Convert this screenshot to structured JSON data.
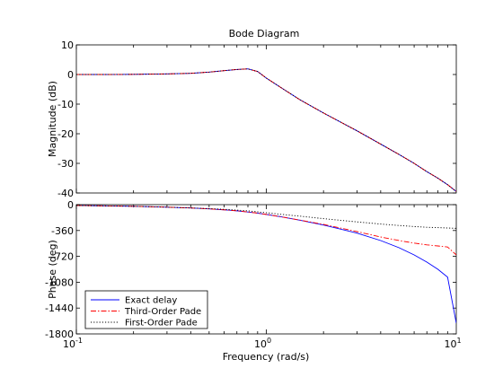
{
  "chart_data": {
    "type": "line",
    "title": "Bode Diagram",
    "xlabel": "Frequency  (rad/s)",
    "x_scale": "log",
    "xlim": [
      0.1,
      10
    ],
    "x_ticks": [
      {
        "value": 0.1,
        "base": "10",
        "exp": "-1"
      },
      {
        "value": 1,
        "base": "10",
        "exp": "0"
      },
      {
        "value": 10,
        "base": "10",
        "exp": "1"
      }
    ],
    "grid": false,
    "legend_position": "bottom-left",
    "panels": [
      {
        "name": "magnitude",
        "ylabel": "Magnitude (dB)",
        "ylim": [
          -40,
          10
        ],
        "y_ticks": [
          10,
          0,
          -10,
          -20,
          -30,
          -40
        ],
        "series": [
          {
            "name": "Exact delay",
            "color": "#0000ff",
            "x": [
              0.1,
              0.15,
              0.2,
              0.3,
              0.4,
              0.5,
              0.6,
              0.7,
              0.8,
              0.9,
              1.0,
              1.2,
              1.5,
              2,
              3,
              4,
              5,
              6,
              7,
              8,
              9,
              10
            ],
            "y": [
              0,
              0,
              0.05,
              0.2,
              0.4,
              0.8,
              1.3,
              1.7,
              1.9,
              1.0,
              -1.2,
              -4.5,
              -8.5,
              -13.0,
              -19.0,
              -23.5,
              -27.0,
              -30.0,
              -32.8,
              -35.0,
              -37.2,
              -39.5
            ]
          },
          {
            "name": "Third-Order Pade",
            "color": "#ff0000",
            "x": [
              0.1,
              0.15,
              0.2,
              0.3,
              0.4,
              0.5,
              0.6,
              0.7,
              0.8,
              0.9,
              1.0,
              1.2,
              1.5,
              2,
              3,
              4,
              5,
              6,
              7,
              8,
              9,
              10
            ],
            "y": [
              0,
              0,
              0.05,
              0.2,
              0.4,
              0.8,
              1.3,
              1.7,
              1.9,
              1.0,
              -1.2,
              -4.5,
              -8.5,
              -13.0,
              -19.0,
              -23.5,
              -27.0,
              -30.0,
              -32.8,
              -35.0,
              -37.2,
              -39.5
            ]
          },
          {
            "name": "First-Order Pade",
            "color": "#000000",
            "x": [
              0.1,
              0.15,
              0.2,
              0.3,
              0.4,
              0.5,
              0.6,
              0.7,
              0.8,
              0.9,
              1.0,
              1.2,
              1.5,
              2,
              3,
              4,
              5,
              6,
              7,
              8,
              9,
              10
            ],
            "y": [
              0,
              0,
              0.05,
              0.2,
              0.4,
              0.8,
              1.3,
              1.7,
              1.9,
              1.0,
              -1.2,
              -4.5,
              -8.5,
              -13.0,
              -19.0,
              -23.5,
              -27.0,
              -30.0,
              -32.8,
              -35.0,
              -37.2,
              -39.5
            ]
          }
        ]
      },
      {
        "name": "phase",
        "ylabel": "Phase (deg)",
        "ylim": [
          -1800,
          0
        ],
        "y_ticks": [
          0,
          -360,
          -720,
          -1080,
          -1440,
          -1800
        ],
        "series": [
          {
            "name": "Exact delay",
            "color": "#0000ff",
            "x": [
              0.1,
              0.15,
              0.2,
              0.3,
              0.4,
              0.5,
              0.6,
              0.7,
              0.8,
              0.9,
              1.0,
              1.2,
              1.5,
              2,
              3,
              4,
              5,
              6,
              7,
              8,
              9,
              10
            ],
            "y": [
              -12,
              -18,
              -23,
              -35,
              -46,
              -58,
              -72,
              -86,
              -102,
              -118,
              -136,
              -170,
              -217,
              -283,
              -396,
              -500,
              -600,
              -700,
              -800,
              -900,
              -1010,
              -1650
            ]
          },
          {
            "name": "Third-Order Pade",
            "color": "#ff0000",
            "x": [
              0.1,
              0.15,
              0.2,
              0.3,
              0.4,
              0.5,
              0.6,
              0.7,
              0.8,
              0.9,
              1.0,
              1.2,
              1.5,
              2,
              3,
              4,
              5,
              6,
              7,
              8,
              9,
              10
            ],
            "y": [
              -12,
              -18,
              -23,
              -35,
              -46,
              -58,
              -72,
              -86,
              -102,
              -118,
              -136,
              -170,
              -215,
              -275,
              -375,
              -450,
              -500,
              -535,
              -560,
              -575,
              -590,
              -700
            ]
          },
          {
            "name": "First-Order Pade",
            "color": "#000000",
            "x": [
              0.1,
              0.15,
              0.2,
              0.3,
              0.4,
              0.5,
              0.6,
              0.7,
              0.8,
              0.9,
              1.0,
              1.2,
              1.5,
              2,
              3,
              4,
              5,
              6,
              7,
              8,
              9,
              10
            ],
            "y": [
              -12,
              -18,
              -23,
              -35,
              -46,
              -55,
              -65,
              -76,
              -86,
              -100,
              -112,
              -135,
              -160,
              -195,
              -240,
              -270,
              -290,
              -305,
              -315,
              -320,
              -325,
              -330
            ]
          }
        ]
      }
    ]
  }
}
